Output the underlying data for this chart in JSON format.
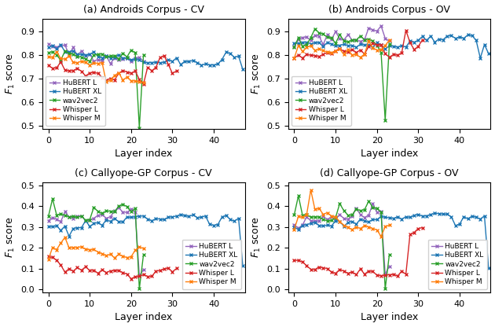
{
  "subplot_titles": [
    "(a) Androids Corpus - CV",
    "(b) Androids Corpus - OV",
    "(c) Callyope-GP Corpus - CV",
    "(d) Callyope-GP Corpus - OV"
  ],
  "ylabel": "$F_1$ score",
  "xlabel": "Layer index",
  "legend_labels": [
    "HuBERT L",
    "HuBERT XL",
    "wav2vec2",
    "Whisper L",
    "Whisper M"
  ],
  "colors": [
    "#9467bd",
    "#1f77b4",
    "#2ca02c",
    "#d62728",
    "#ff7f0e"
  ],
  "marker": "x",
  "linewidth": 1.0,
  "markersize": 3.5,
  "figsize": [
    6.3,
    4.16
  ],
  "dpi": 100
}
